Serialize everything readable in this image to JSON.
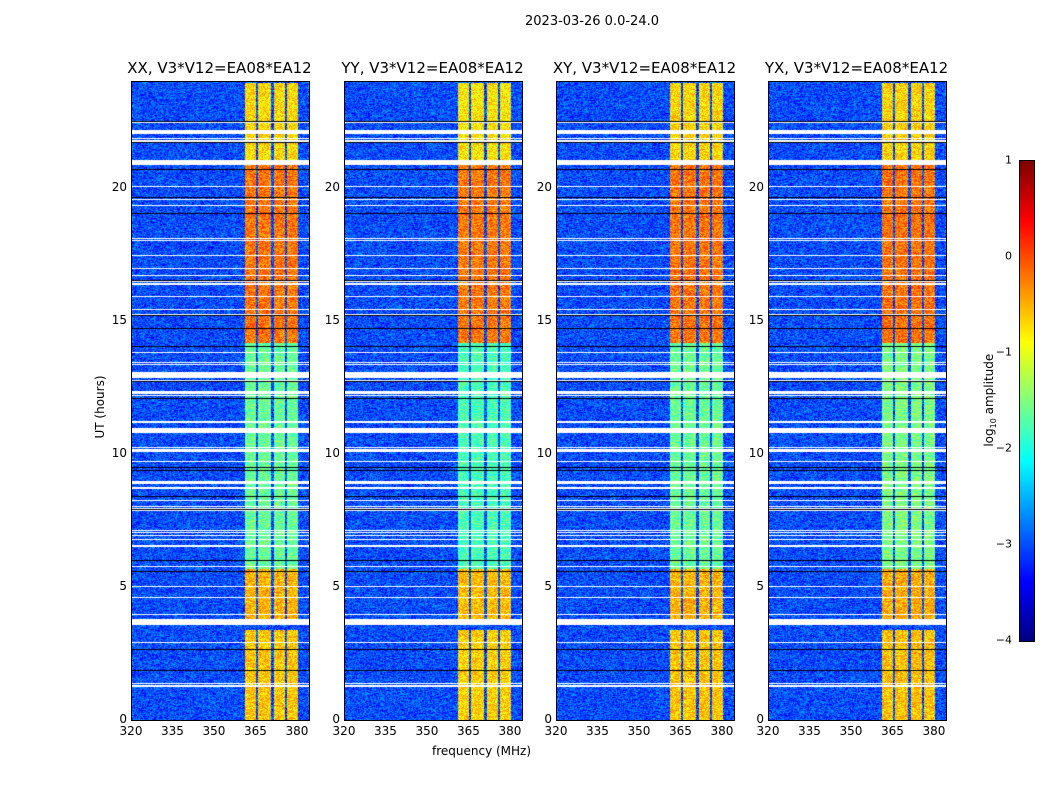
{
  "chart_data": {
    "type": "heatmap",
    "title": "2023-03-26 0.0-24.0",
    "xlabel": "frequency (MHz)",
    "ylabel": "UT (hours)",
    "xlim": [
      320,
      384
    ],
    "ylim": [
      0,
      24
    ],
    "xticks": [
      "320",
      "335",
      "350",
      "365",
      "380"
    ],
    "xtick_values": [
      320,
      335,
      350,
      365,
      380
    ],
    "yticks": [
      "0",
      "5",
      "10",
      "15",
      "20"
    ],
    "ytick_values": [
      0,
      5,
      10,
      15,
      20
    ],
    "panels": [
      {
        "title": "XX, V3*V12=EA08*EA12",
        "band_gain": 1.0
      },
      {
        "title": "YY, V3*V12=EA08*EA12",
        "band_gain": 1.1
      },
      {
        "title": "XY, V3*V12=EA08*EA12",
        "band_gain": 1.0
      },
      {
        "title": "YX, V3*V12=EA08*EA12",
        "band_gain": 0.95
      }
    ],
    "colorbar": {
      "label": "log10 amplitude",
      "range": [
        -4,
        1
      ],
      "ticks": [
        "1",
        "0",
        "−1",
        "−2",
        "−3",
        "−4"
      ],
      "tick_values": [
        1,
        0,
        -1,
        -2,
        -3,
        -4
      ],
      "colormap": "jet"
    },
    "background_level": -3.0,
    "rfi_band_mhz": [
      360.5,
      380
    ],
    "rfi_band_gaps_mhz": [
      365,
      370.5,
      375.5
    ],
    "rfi_time_levels": [
      {
        "from": 0,
        "to": 3.4,
        "level": -0.6
      },
      {
        "from": 3.8,
        "to": 5.7,
        "level": -0.5
      },
      {
        "from": 5.7,
        "to": 14.2,
        "level": -1.6
      },
      {
        "from": 14.2,
        "to": 21,
        "level": -0.2
      },
      {
        "from": 21.1,
        "to": 24,
        "level": -0.7
      }
    ],
    "flagged_hours": [
      [
        3.6,
        3.8
      ],
      [
        10.8,
        11.0
      ],
      [
        12.9,
        13.1
      ],
      [
        20.9,
        21.1
      ]
    ]
  }
}
